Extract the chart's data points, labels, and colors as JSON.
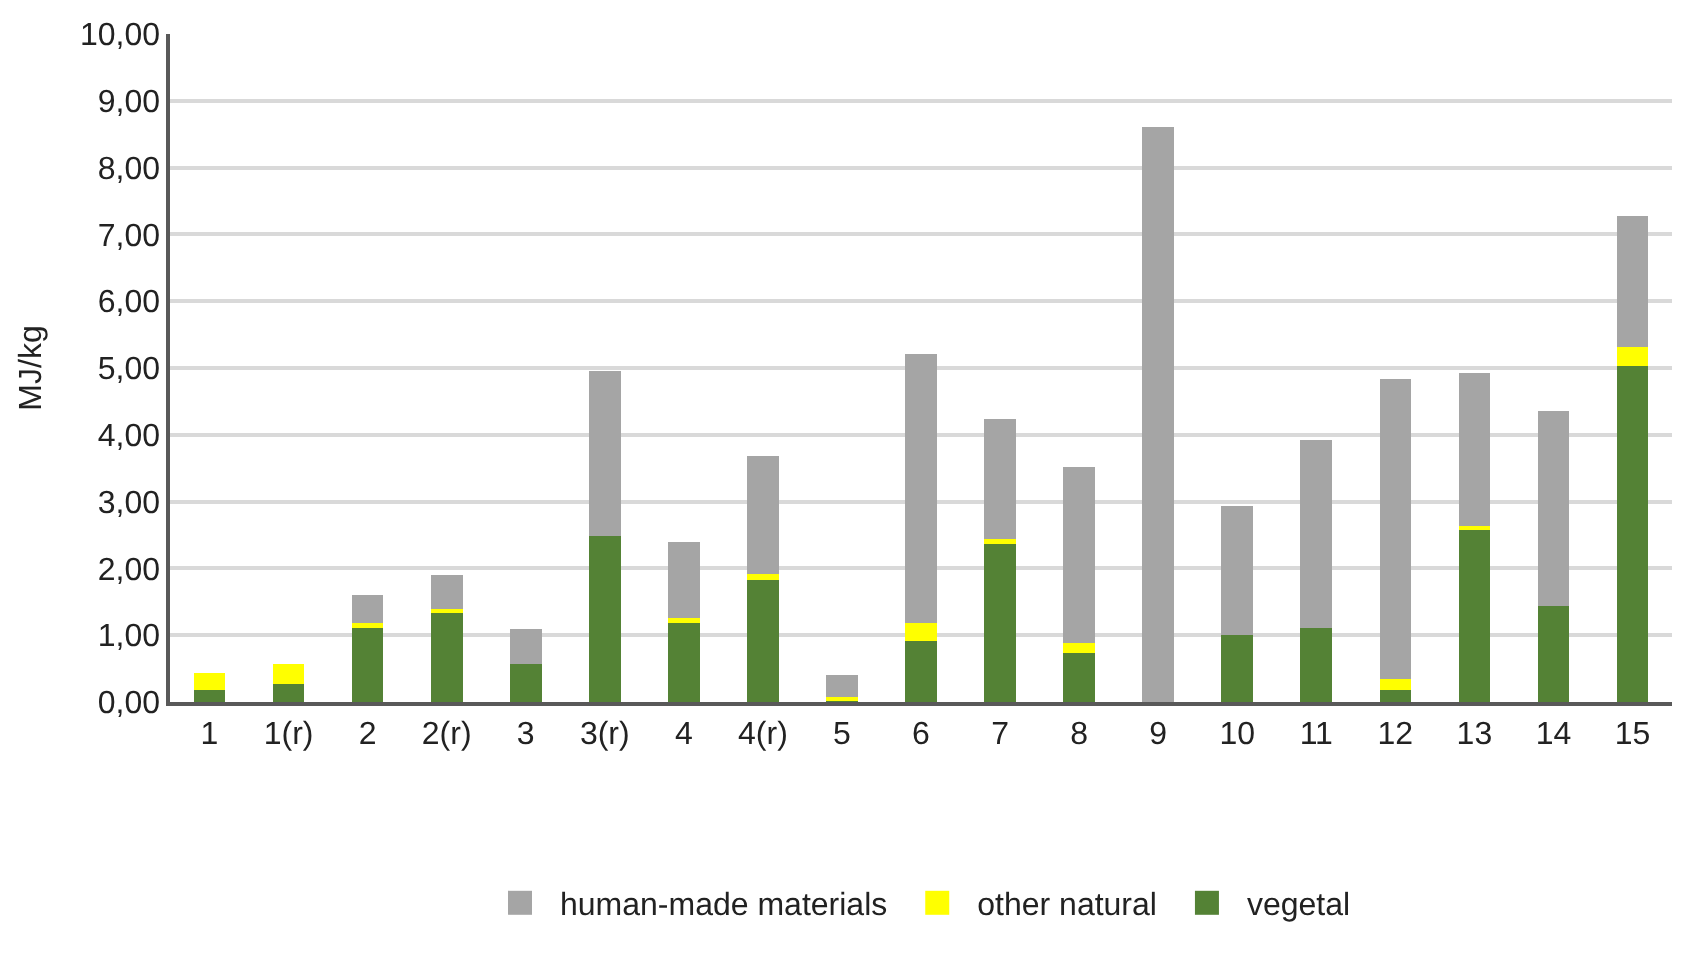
{
  "chart_data": {
    "type": "bar",
    "stacked": true,
    "ylabel": "MJ/kg",
    "categories": [
      "1",
      "1(r)",
      "2",
      "2(r)",
      "3",
      "3(r)",
      "4",
      "4(r)",
      "5",
      "6",
      "7",
      "8",
      "9",
      "10",
      "11",
      "12",
      "13",
      "14",
      "15"
    ],
    "series": [
      {
        "name": "vegetal",
        "color": "#548235",
        "values": [
          0.18,
          0.27,
          1.11,
          1.33,
          0.57,
          2.49,
          1.19,
          1.82,
          0.02,
          0.92,
          2.36,
          0.74,
          0,
          1.01,
          1.11,
          0.18,
          2.59,
          1.43,
          5.03
        ]
      },
      {
        "name": "other natural",
        "color": "#ffff00",
        "values": [
          0.25,
          0.3,
          0.08,
          0.06,
          0,
          0,
          0.07,
          0.09,
          0.06,
          0.26,
          0.08,
          0.14,
          0,
          0,
          0,
          0.17,
          0.05,
          0,
          0.28
        ]
      },
      {
        "name": "human-made materials",
        "color": "#a5a5a5",
        "values": [
          0,
          0,
          0.41,
          0.51,
          0.53,
          2.47,
          1.14,
          1.77,
          0.32,
          4.03,
          1.8,
          2.64,
          8.61,
          1.92,
          2.81,
          4.48,
          2.29,
          2.93,
          1.96
        ]
      }
    ],
    "ylim": [
      0,
      10
    ],
    "yticks": [
      {
        "value": 0,
        "label": "0,00"
      },
      {
        "value": 1,
        "label": "1,00"
      },
      {
        "value": 2,
        "label": "2,00"
      },
      {
        "value": 3,
        "label": "3,00"
      },
      {
        "value": 4,
        "label": "4,00"
      },
      {
        "value": 5,
        "label": "5,00"
      },
      {
        "value": 6,
        "label": "6,00"
      },
      {
        "value": 7,
        "label": "7,00"
      },
      {
        "value": 8,
        "label": "8,00"
      },
      {
        "value": 9,
        "label": "9,00"
      },
      {
        "value": 10,
        "label": "10,00"
      }
    ],
    "grid": "y",
    "legend": "bottom"
  }
}
